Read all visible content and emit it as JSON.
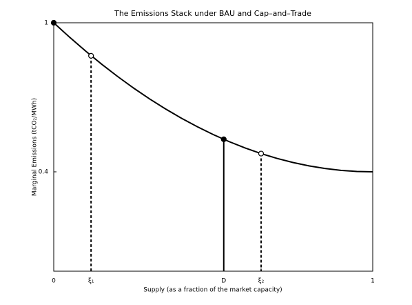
{
  "chart_data": {
    "type": "line",
    "title": "The Emissions Stack under BAU and Cap–and–Trade",
    "x_label": "Supply (as a fraction of the market capacity)",
    "y_label": "Marginal Emissions (tCO₂/MWh)",
    "xlim": [
      0,
      1
    ],
    "ylim": [
      0,
      1
    ],
    "xticks": [
      0,
      {
        "value": 0.117,
        "label": "ξ₁"
      },
      {
        "value": 0.533,
        "label": "D"
      },
      {
        "value": 0.65,
        "label": "ξ₂"
      },
      1
    ],
    "yticks": [
      0.4,
      1
    ],
    "grid": false,
    "series": [
      {
        "color": "#000000",
        "x": [
          0,
          0.05,
          0.1,
          0.15,
          0.2,
          0.25,
          0.3,
          0.35,
          0.4,
          0.45,
          0.5,
          0.55,
          0.6,
          0.65,
          0.7,
          0.75,
          0.8,
          0.85,
          0.9,
          0.95,
          1
        ],
        "values": [
          1,
          0.9415,
          0.886,
          0.8335,
          0.784,
          0.7375,
          0.694,
          0.6535,
          0.616,
          0.5815,
          0.55,
          0.5215,
          0.496,
          0.4735,
          0.454,
          0.4375,
          0.424,
          0.4135,
          0.406,
          0.4015,
          0.4
        ]
      }
    ],
    "points": [
      {
        "x": 0,
        "y": 1,
        "filled": true,
        "drop": "none"
      },
      {
        "x": 0.117,
        "y": 0.867,
        "filled": false,
        "drop": "dashed"
      },
      {
        "x": 0.533,
        "y": 0.531,
        "filled": true,
        "drop": "solid"
      },
      {
        "x": 0.65,
        "y": 0.4735,
        "filled": false,
        "drop": "dashed"
      }
    ]
  }
}
